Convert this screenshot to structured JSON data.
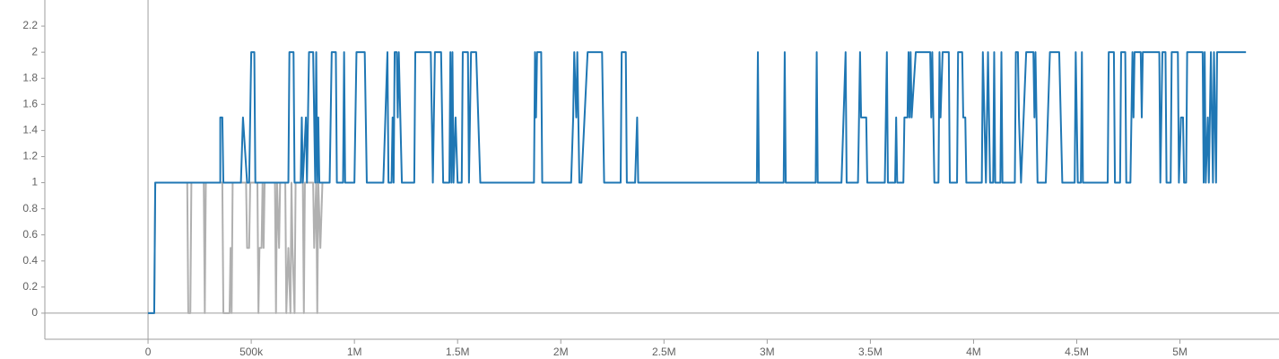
{
  "chart_data": {
    "type": "line",
    "xlim": [
      -500000,
      5480000
    ],
    "ylim": [
      -0.2,
      2.4
    ],
    "yticks": [
      0,
      0.2,
      0.4,
      0.6,
      0.8,
      1,
      1.2,
      1.4,
      1.6,
      1.8,
      2,
      2.2
    ],
    "xticks": [
      0,
      {
        "value": 500000,
        "label": "500k"
      },
      {
        "value": 1000000,
        "label": "1M"
      },
      {
        "value": 1500000,
        "label": "1.5M"
      },
      {
        "value": 2000000,
        "label": "2M"
      },
      {
        "value": 2500000,
        "label": "2.5M"
      },
      {
        "value": 3000000,
        "label": "3M"
      },
      {
        "value": 3500000,
        "label": "3.5M"
      },
      {
        "value": 4000000,
        "label": "4M"
      },
      {
        "value": 4500000,
        "label": "4.5M"
      },
      {
        "value": 5000000,
        "label": "5M"
      }
    ],
    "series": [
      {
        "color": "#b0b0b0",
        "x": [
          0,
          30000,
          35000,
          190000,
          195000,
          205000,
          210000,
          270000,
          275000,
          280000,
          360000,
          365000,
          395000,
          400000,
          405000,
          410000,
          475000,
          480000,
          490000,
          495000,
          530000,
          535000,
          540000,
          550000,
          555000,
          560000,
          565000,
          615000,
          620000,
          625000,
          635000,
          640000,
          665000,
          670000,
          680000,
          690000,
          695000,
          700000,
          710000,
          715000,
          750000,
          755000,
          760000,
          800000,
          805000,
          815000,
          820000,
          825000,
          835000,
          845000,
          860000
        ],
        "values": [
          0,
          0,
          1,
          1,
          0,
          0,
          1,
          1,
          0,
          1,
          1,
          0,
          0,
          0.5,
          0,
          1,
          1,
          0.5,
          0.5,
          1,
          1,
          0,
          0.5,
          0.5,
          1,
          0.5,
          1,
          1,
          0,
          1,
          0.5,
          1,
          1,
          0,
          0.5,
          0,
          1,
          0.5,
          0,
          1,
          1,
          0,
          1,
          1,
          0.5,
          1,
          0,
          1,
          0.5,
          1,
          1
        ]
      },
      {
        "color": "#1f77b4",
        "x": [
          0,
          30000,
          35000,
          350000,
          350000,
          360000,
          365000,
          450000,
          460000,
          480000,
          490000,
          500000,
          515000,
          520000,
          680000,
          685000,
          705000,
          710000,
          740000,
          745000,
          750000,
          765000,
          770000,
          780000,
          800000,
          810000,
          815000,
          820000,
          825000,
          830000,
          880000,
          890000,
          910000,
          915000,
          945000,
          950000,
          955000,
          1000000,
          1010000,
          1050000,
          1060000,
          1140000,
          1160000,
          1165000,
          1180000,
          1185000,
          1190000,
          1195000,
          1205000,
          1210000,
          1215000,
          1230000,
          1290000,
          1295000,
          1370000,
          1380000,
          1390000,
          1420000,
          1430000,
          1460000,
          1465000,
          1470000,
          1475000,
          1480000,
          1490000,
          1500000,
          1520000,
          1525000,
          1550000,
          1555000,
          1565000,
          1590000,
          1610000,
          1870000,
          1875000,
          1880000,
          1885000,
          1905000,
          1910000,
          2050000,
          2060000,
          2065000,
          2075000,
          2080000,
          2090000,
          2100000,
          2130000,
          2200000,
          2210000,
          2290000,
          2295000,
          2315000,
          2320000,
          2360000,
          2370000,
          2375000,
          2950000,
          2955000,
          2960000,
          3080000,
          3085000,
          3090000,
          3235000,
          3240000,
          3245000,
          3360000,
          3370000,
          3380000,
          3385000,
          3440000,
          3450000,
          3455000,
          3480000,
          3485000,
          3570000,
          3580000,
          3585000,
          3620000,
          3625000,
          3630000,
          3660000,
          3665000,
          3680000,
          3685000,
          3690000,
          3695000,
          3700000,
          3720000,
          3790000,
          3795000,
          3800000,
          3810000,
          3830000,
          3835000,
          3840000,
          3850000,
          3880000,
          3885000,
          3920000,
          3925000,
          3945000,
          3950000,
          3960000,
          3965000,
          4040000,
          4045000,
          4060000,
          4070000,
          4080000,
          4095000,
          4100000,
          4105000,
          4130000,
          4135000,
          4140000,
          4200000,
          4205000,
          4215000,
          4220000,
          4230000,
          4255000,
          4290000,
          4295000,
          4300000,
          4310000,
          4350000,
          4370000,
          4415000,
          4430000,
          4490000,
          4495000,
          4505000,
          4520000,
          4525000,
          4530000,
          4650000,
          4655000,
          4680000,
          4685000,
          4710000,
          4715000,
          4735000,
          4740000,
          4760000,
          4770000,
          4775000,
          4780000,
          4810000,
          4815000,
          4820000,
          4900000,
          4905000,
          4915000,
          4930000,
          4935000,
          4955000,
          4960000,
          4990000,
          4995000,
          5005000,
          5015000,
          5020000,
          5030000,
          5035000,
          5110000,
          5115000,
          5120000,
          5125000,
          5135000,
          5140000,
          5150000,
          5160000,
          5165000,
          5175000,
          5180000,
          5320000
        ],
        "values": [
          0,
          0,
          1,
          1,
          1.5,
          1.5,
          1,
          1,
          1.5,
          1,
          1,
          2,
          2,
          1,
          1,
          2,
          2,
          1,
          1,
          1.5,
          1,
          1.5,
          1,
          2,
          2,
          1,
          2,
          1,
          1.5,
          1,
          1,
          2,
          2,
          1,
          1,
          2,
          1,
          1,
          2,
          2,
          1,
          1,
          2,
          1,
          1,
          1.5,
          1,
          2,
          2,
          1.5,
          2,
          1,
          1,
          2,
          2,
          1,
          2,
          2,
          1,
          1,
          2,
          1,
          2,
          1,
          1.5,
          1,
          1,
          2,
          2,
          1,
          2,
          2,
          1,
          1,
          2,
          1.5,
          2,
          2,
          1,
          1,
          1.5,
          2,
          1.5,
          2,
          1,
          1,
          2,
          2,
          1,
          1,
          2,
          2,
          1,
          1,
          1.5,
          1,
          1,
          2,
          1,
          1,
          2,
          1,
          1,
          2,
          1,
          1,
          1.5,
          2,
          1,
          1,
          2,
          1.5,
          1.5,
          1,
          1,
          2,
          1,
          1,
          1.5,
          1,
          1,
          1.5,
          1.5,
          2,
          1.5,
          2,
          1.5,
          2,
          2,
          1.5,
          2,
          1,
          1,
          2,
          1.5,
          2,
          2,
          1,
          1,
          2,
          2,
          1.5,
          1.5,
          1,
          1,
          2,
          1,
          2,
          1,
          1,
          2,
          1,
          1,
          2,
          1,
          1,
          2,
          2,
          1.5,
          1,
          2,
          2,
          1.5,
          2,
          1,
          1,
          2,
          2,
          1,
          1,
          2,
          1,
          1,
          2,
          1,
          1,
          2,
          2,
          1,
          1,
          2,
          2,
          1,
          1,
          2,
          1.5,
          2,
          2,
          1.5,
          2,
          2,
          1,
          2,
          2,
          1,
          1,
          2,
          2,
          1,
          1.5,
          1.5,
          1,
          1,
          2,
          2,
          1,
          2,
          1,
          1.5,
          1,
          2,
          1,
          2,
          1,
          2,
          2
        ]
      }
    ]
  }
}
